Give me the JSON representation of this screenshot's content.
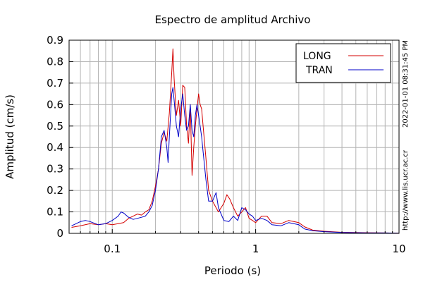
{
  "chart_data": {
    "type": "line",
    "title": "Espectro de amplitud Archivo",
    "xlabel": "Periodo (s)",
    "ylabel": "Amplitud (cm/s)",
    "xscale": "log",
    "xlim": [
      0.05,
      10
    ],
    "ylim": [
      0,
      0.9
    ],
    "xticks": [
      0.1,
      1,
      10
    ],
    "xtick_labels": [
      "0.1",
      "1",
      "10"
    ],
    "yticks": [
      0,
      0.1,
      0.2,
      0.3,
      0.4,
      0.5,
      0.6,
      0.7,
      0.8,
      0.9
    ],
    "ytick_labels": [
      "0",
      "0.1",
      "0.2",
      "0.3",
      "0.4",
      "0.5",
      "0.6",
      "0.7",
      "0.8",
      "0.9"
    ],
    "grid": true,
    "legend_position": "top-right",
    "timestamp": "2022-01-01 08:31:45 PM",
    "source": "http://www.lis.ucr.ac.cr",
    "series": [
      {
        "name": "LONG",
        "color": "#d40000",
        "points": [
          [
            0.052,
            0.028
          ],
          [
            0.06,
            0.035
          ],
          [
            0.07,
            0.045
          ],
          [
            0.08,
            0.04
          ],
          [
            0.09,
            0.045
          ],
          [
            0.1,
            0.04
          ],
          [
            0.11,
            0.045
          ],
          [
            0.12,
            0.05
          ],
          [
            0.13,
            0.07
          ],
          [
            0.14,
            0.08
          ],
          [
            0.15,
            0.09
          ],
          [
            0.16,
            0.085
          ],
          [
            0.17,
            0.1
          ],
          [
            0.18,
            0.11
          ],
          [
            0.19,
            0.15
          ],
          [
            0.2,
            0.22
          ],
          [
            0.21,
            0.3
          ],
          [
            0.22,
            0.42
          ],
          [
            0.23,
            0.47
          ],
          [
            0.24,
            0.43
          ],
          [
            0.25,
            0.56
          ],
          [
            0.26,
            0.75
          ],
          [
            0.265,
            0.86
          ],
          [
            0.27,
            0.72
          ],
          [
            0.28,
            0.55
          ],
          [
            0.29,
            0.62
          ],
          [
            0.3,
            0.5
          ],
          [
            0.31,
            0.69
          ],
          [
            0.32,
            0.68
          ],
          [
            0.33,
            0.5
          ],
          [
            0.34,
            0.42
          ],
          [
            0.35,
            0.6
          ],
          [
            0.36,
            0.27
          ],
          [
            0.37,
            0.4
          ],
          [
            0.38,
            0.5
          ],
          [
            0.39,
            0.58
          ],
          [
            0.4,
            0.65
          ],
          [
            0.41,
            0.6
          ],
          [
            0.42,
            0.58
          ],
          [
            0.43,
            0.5
          ],
          [
            0.45,
            0.35
          ],
          [
            0.47,
            0.2
          ],
          [
            0.5,
            0.15
          ],
          [
            0.55,
            0.1
          ],
          [
            0.6,
            0.14
          ],
          [
            0.63,
            0.18
          ],
          [
            0.66,
            0.16
          ],
          [
            0.7,
            0.12
          ],
          [
            0.75,
            0.08
          ],
          [
            0.8,
            0.1
          ],
          [
            0.85,
            0.12
          ],
          [
            0.9,
            0.07
          ],
          [
            0.95,
            0.06
          ],
          [
            1.0,
            0.05
          ],
          [
            1.1,
            0.08
          ],
          [
            1.2,
            0.08
          ],
          [
            1.3,
            0.05
          ],
          [
            1.5,
            0.045
          ],
          [
            1.7,
            0.06
          ],
          [
            2.0,
            0.05
          ],
          [
            2.2,
            0.03
          ],
          [
            2.5,
            0.015
          ],
          [
            3.0,
            0.01
          ],
          [
            4.0,
            0.005
          ],
          [
            6.0,
            0.003
          ],
          [
            8.0,
            0.002
          ],
          [
            10.0,
            0.001
          ]
        ]
      },
      {
        "name": "TRAN",
        "color": "#0000c8",
        "points": [
          [
            0.052,
            0.035
          ],
          [
            0.06,
            0.055
          ],
          [
            0.065,
            0.06
          ],
          [
            0.07,
            0.055
          ],
          [
            0.08,
            0.04
          ],
          [
            0.09,
            0.045
          ],
          [
            0.1,
            0.06
          ],
          [
            0.11,
            0.08
          ],
          [
            0.115,
            0.1
          ],
          [
            0.12,
            0.095
          ],
          [
            0.13,
            0.075
          ],
          [
            0.14,
            0.065
          ],
          [
            0.15,
            0.07
          ],
          [
            0.16,
            0.075
          ],
          [
            0.17,
            0.08
          ],
          [
            0.18,
            0.1
          ],
          [
            0.19,
            0.13
          ],
          [
            0.2,
            0.2
          ],
          [
            0.21,
            0.3
          ],
          [
            0.22,
            0.45
          ],
          [
            0.23,
            0.48
          ],
          [
            0.24,
            0.4
          ],
          [
            0.245,
            0.33
          ],
          [
            0.25,
            0.45
          ],
          [
            0.26,
            0.65
          ],
          [
            0.265,
            0.68
          ],
          [
            0.27,
            0.62
          ],
          [
            0.28,
            0.5
          ],
          [
            0.29,
            0.45
          ],
          [
            0.3,
            0.58
          ],
          [
            0.31,
            0.65
          ],
          [
            0.32,
            0.55
          ],
          [
            0.33,
            0.48
          ],
          [
            0.34,
            0.5
          ],
          [
            0.35,
            0.6
          ],
          [
            0.36,
            0.48
          ],
          [
            0.37,
            0.45
          ],
          [
            0.38,
            0.55
          ],
          [
            0.39,
            0.6
          ],
          [
            0.4,
            0.55
          ],
          [
            0.41,
            0.5
          ],
          [
            0.42,
            0.45
          ],
          [
            0.43,
            0.38
          ],
          [
            0.45,
            0.25
          ],
          [
            0.47,
            0.15
          ],
          [
            0.5,
            0.15
          ],
          [
            0.53,
            0.19
          ],
          [
            0.55,
            0.12
          ],
          [
            0.6,
            0.06
          ],
          [
            0.65,
            0.055
          ],
          [
            0.7,
            0.08
          ],
          [
            0.75,
            0.06
          ],
          [
            0.8,
            0.12
          ],
          [
            0.85,
            0.11
          ],
          [
            0.9,
            0.09
          ],
          [
            0.95,
            0.08
          ],
          [
            1.0,
            0.06
          ],
          [
            1.1,
            0.07
          ],
          [
            1.2,
            0.06
          ],
          [
            1.3,
            0.04
          ],
          [
            1.5,
            0.035
          ],
          [
            1.7,
            0.05
          ],
          [
            2.0,
            0.04
          ],
          [
            2.2,
            0.02
          ],
          [
            2.5,
            0.012
          ],
          [
            3.0,
            0.008
          ],
          [
            4.0,
            0.004
          ],
          [
            6.0,
            0.002
          ],
          [
            8.0,
            0.002
          ],
          [
            10.0,
            0.001
          ]
        ]
      }
    ]
  }
}
